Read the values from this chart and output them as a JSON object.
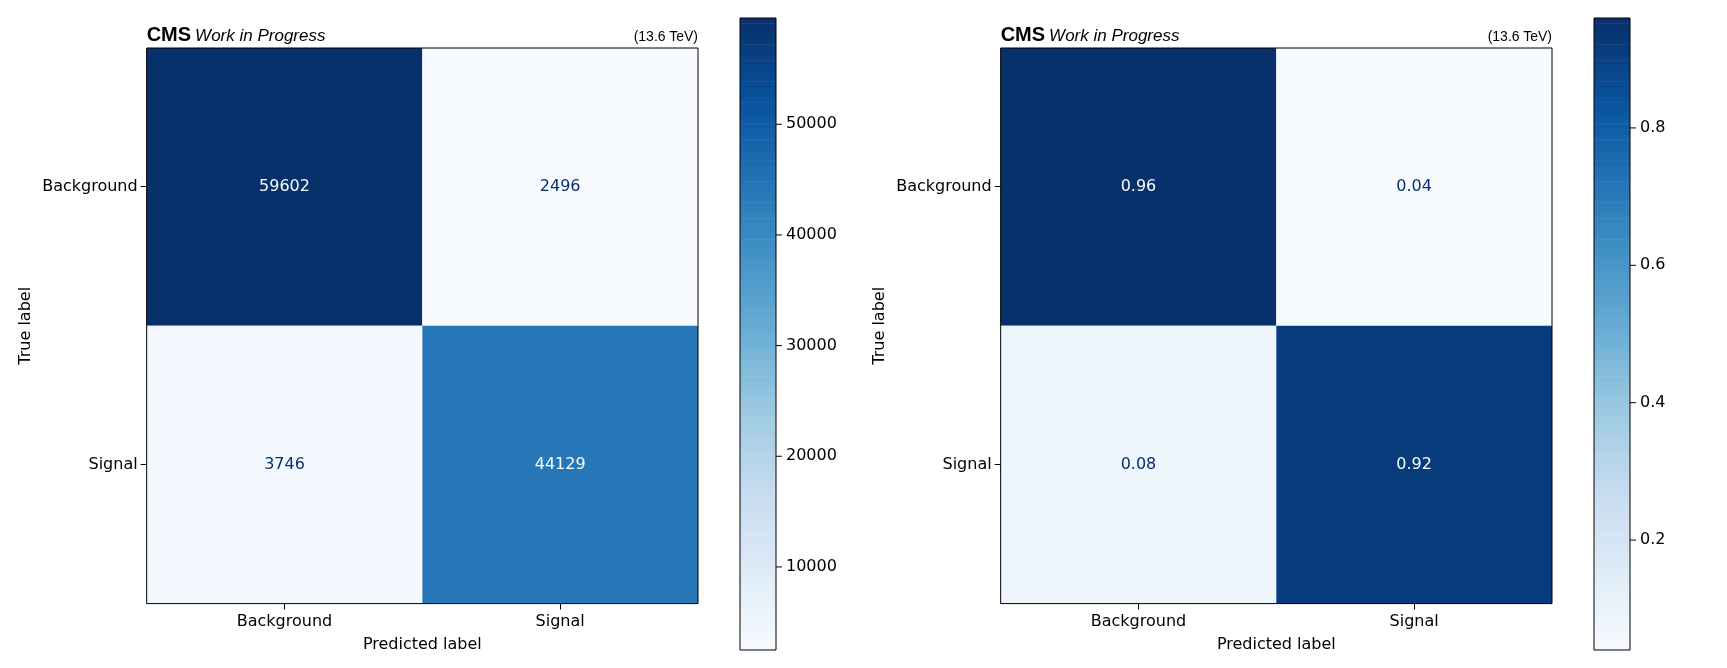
{
  "chart_data": [
    {
      "type": "heatmap",
      "title": "CMS",
      "subtitle": "Work in Progress",
      "annotations": [
        "(13.6 TeV)"
      ],
      "xlabel": "Predicted label",
      "ylabel": "True label",
      "categories": [
        "Background",
        "Signal"
      ],
      "y_categories": [
        "Background",
        "Signal"
      ],
      "cells": [
        [
          59602,
          2496
        ],
        [
          3746,
          44129
        ]
      ],
      "clim": [
        2496,
        59602
      ],
      "cticks": [
        10000,
        20000,
        30000,
        40000,
        50000
      ],
      "data_labels": true,
      "legend": false
    },
    {
      "type": "heatmap",
      "title": "CMS",
      "subtitle": "Work in Progress",
      "annotations": [
        "(13.6 TeV)"
      ],
      "xlabel": "Predicted label",
      "ylabel": "True label",
      "categories": [
        "Background",
        "Signal"
      ],
      "y_categories": [
        "Background",
        "Signal"
      ],
      "cells": [
        [
          0.96,
          0.04
        ],
        [
          0.08,
          0.92
        ]
      ],
      "clim": [
        0.04,
        0.96
      ],
      "cticks": [
        0.2,
        0.4,
        0.6,
        0.8
      ],
      "data_labels": true,
      "legend": false
    }
  ]
}
